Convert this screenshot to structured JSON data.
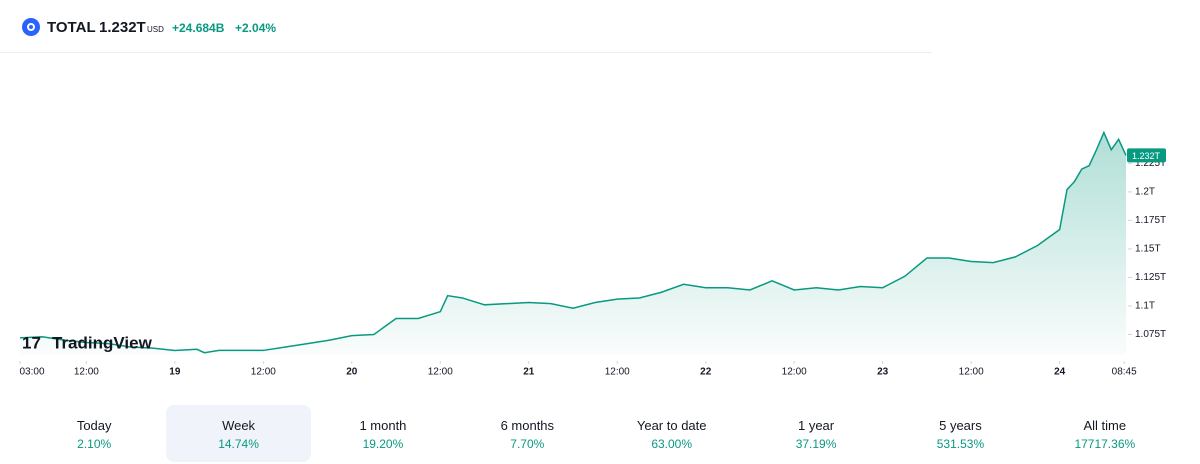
{
  "header": {
    "symbol": "TOTAL",
    "price": "1.232T",
    "currency": "USD",
    "change": "+24.684B",
    "change_percent": "+2.04%"
  },
  "chart_data": {
    "type": "area",
    "watermark": "TradingView",
    "color": "#089981",
    "x": [
      3,
      6,
      9,
      12,
      15,
      18,
      21,
      24,
      27,
      28,
      30,
      33,
      36,
      39,
      42,
      45,
      48,
      51,
      54,
      57,
      60,
      61,
      63,
      66,
      69,
      72,
      75,
      78,
      81,
      84,
      87,
      90,
      93,
      96,
      99,
      102,
      105,
      108,
      111,
      114,
      117,
      120,
      123,
      126,
      129,
      132,
      135,
      138,
      141,
      144,
      145,
      146,
      147,
      148,
      149,
      150,
      151,
      152,
      153
    ],
    "series": [
      {
        "name": "TOTAL",
        "color": "#089981",
        "values": [
          1.072,
          1.073,
          1.07,
          1.068,
          1.067,
          1.064,
          1.063,
          1.061,
          1.062,
          1.059,
          1.061,
          1.061,
          1.061,
          1.064,
          1.067,
          1.07,
          1.074,
          1.075,
          1.089,
          1.089,
          1.095,
          1.109,
          1.107,
          1.101,
          1.102,
          1.103,
          1.102,
          1.098,
          1.103,
          1.106,
          1.107,
          1.112,
          1.119,
          1.116,
          1.116,
          1.114,
          1.122,
          1.114,
          1.116,
          1.114,
          1.117,
          1.116,
          1.126,
          1.142,
          1.142,
          1.139,
          1.138,
          1.143,
          1.153,
          1.167,
          1.202,
          1.209,
          1.22,
          1.223,
          1.237,
          1.252,
          1.237,
          1.246,
          1.232
        ],
        "value_labels": [
          null,
          null,
          null,
          null,
          null,
          null,
          null,
          null,
          null,
          null,
          null,
          null,
          null,
          null,
          null,
          null,
          null,
          null,
          null,
          null,
          null,
          null,
          null,
          null,
          null,
          null,
          null,
          null,
          null,
          null,
          null,
          null,
          null,
          null,
          null,
          null,
          null,
          null,
          null,
          null,
          null,
          null,
          null,
          null,
          null,
          null,
          null,
          null,
          null,
          null,
          null,
          null,
          null,
          null,
          null,
          null,
          null,
          null,
          "1.232T"
        ]
      }
    ],
    "xlim": [
      3,
      153
    ],
    "xticks": [
      {
        "value": 3,
        "label": "03:00"
      },
      {
        "value": 12,
        "label": "12:00"
      },
      {
        "value": 24,
        "label": "19"
      },
      {
        "value": 36,
        "label": "12:00"
      },
      {
        "value": 48,
        "label": "20"
      },
      {
        "value": 60,
        "label": "12:00"
      },
      {
        "value": 72,
        "label": "21"
      },
      {
        "value": 84,
        "label": "12:00"
      },
      {
        "value": 96,
        "label": "22"
      },
      {
        "value": 108,
        "label": "12:00"
      },
      {
        "value": 120,
        "label": "23"
      },
      {
        "value": 132,
        "label": "12:00"
      },
      {
        "value": 144,
        "label": "24"
      },
      {
        "value": 152.75,
        "label": "08:45"
      }
    ],
    "ylim": [
      1.057,
      1.32
    ],
    "yticks": [
      {
        "value": 1.075,
        "label": "1.075T"
      },
      {
        "value": 1.1,
        "label": "1.1T"
      },
      {
        "value": 1.125,
        "label": "1.125T"
      },
      {
        "value": 1.15,
        "label": "1.15T"
      },
      {
        "value": 1.175,
        "label": "1.175T"
      },
      {
        "value": 1.2,
        "label": "1.2T"
      },
      {
        "value": 1.225,
        "label": "1.225T"
      }
    ]
  },
  "periods": {
    "selected": 1,
    "items": [
      {
        "label": "Today",
        "value": "2.10%"
      },
      {
        "label": "Week",
        "value": "14.74%"
      },
      {
        "label": "1 month",
        "value": "19.20%"
      },
      {
        "label": "6 months",
        "value": "7.70%"
      },
      {
        "label": "Year to date",
        "value": "63.00%"
      },
      {
        "label": "1 year",
        "value": "37.19%"
      },
      {
        "label": "5 years",
        "value": "531.53%"
      },
      {
        "label": "All time",
        "value": "17717.36%"
      }
    ]
  }
}
